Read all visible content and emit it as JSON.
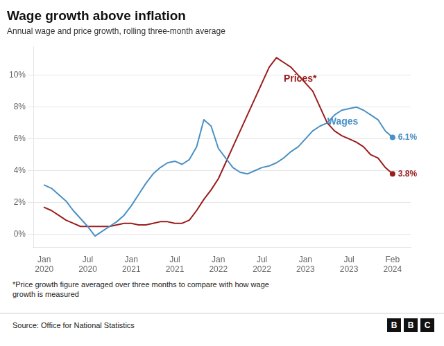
{
  "chart_data": {
    "type": "line",
    "title": "Wage growth above inflation",
    "subtitle": "Annual wage and price growth, rolling three-month average",
    "footnote": "*Price growth figure averaged over three months to compare with how wage\ngrowth is measured",
    "source": "Source: Office for National Statistics",
    "logo": "BBC",
    "x": [
      0,
      1,
      2,
      3,
      4,
      5,
      6,
      7,
      8,
      9,
      10,
      11,
      12,
      13,
      14,
      15,
      16,
      17,
      18,
      19,
      20,
      21,
      22,
      23,
      24,
      25,
      26,
      27,
      28,
      29,
      30,
      31,
      32,
      33,
      34,
      35,
      36,
      37,
      38,
      39,
      40,
      41,
      42,
      43,
      44,
      45,
      46,
      47,
      48
    ],
    "series": [
      {
        "name": "Wages",
        "color": "#4a90c4",
        "end_label": "6.1%",
        "values": [
          3.1,
          2.9,
          2.5,
          2.1,
          1.5,
          1.0,
          0.5,
          -0.1,
          0.2,
          0.5,
          0.8,
          1.2,
          1.8,
          2.5,
          3.2,
          3.8,
          4.2,
          4.5,
          4.6,
          4.4,
          4.7,
          5.5,
          7.2,
          6.8,
          5.4,
          4.8,
          4.2,
          3.9,
          3.8,
          4.0,
          4.2,
          4.3,
          4.5,
          4.8,
          5.2,
          5.5,
          6.0,
          6.5,
          6.8,
          7.0,
          7.5,
          7.8,
          7.9,
          8.0,
          7.8,
          7.5,
          7.2,
          6.5,
          6.1
        ]
      },
      {
        "name": "Prices*",
        "color": "#9b1c1c",
        "end_label": "3.8%",
        "values": [
          1.7,
          1.5,
          1.2,
          0.9,
          0.7,
          0.5,
          0.5,
          0.5,
          0.5,
          0.5,
          0.6,
          0.7,
          0.7,
          0.6,
          0.6,
          0.7,
          0.8,
          0.8,
          0.7,
          0.7,
          0.9,
          1.5,
          2.2,
          2.8,
          3.5,
          4.5,
          5.5,
          6.5,
          7.5,
          8.5,
          9.5,
          10.5,
          11.1,
          10.8,
          10.5,
          10.0,
          9.5,
          9.0,
          8.0,
          7.0,
          6.5,
          6.2,
          6.0,
          5.8,
          5.5,
          5.0,
          4.8,
          4.2,
          3.8
        ]
      }
    ],
    "annotations": [
      {
        "text": "Prices*",
        "x": 33,
        "y": 9.6,
        "color": "#9b1c1c"
      },
      {
        "text": "Wages",
        "x": 39,
        "y": 6.9,
        "color": "#4a90c4"
      }
    ],
    "xlim": [
      -1.5,
      50.5
    ],
    "xticks": [
      {
        "value": 0,
        "label": "Jan\n2020"
      },
      {
        "value": 6,
        "label": "Jul\n2020"
      },
      {
        "value": 12,
        "label": "Jan\n2021"
      },
      {
        "value": 18,
        "label": "Jul\n2021"
      },
      {
        "value": 24,
        "label": "Jan\n2022"
      },
      {
        "value": 30,
        "label": "Jul\n2022"
      },
      {
        "value": 36,
        "label": "Jan\n2023"
      },
      {
        "value": 42,
        "label": "Jul\n2023"
      },
      {
        "value": 48,
        "label": "Feb\n2024"
      }
    ],
    "ylim": [
      -0.8,
      11.8
    ],
    "yticks": [
      {
        "value": 0,
        "label": "0%"
      },
      {
        "value": 2,
        "label": "2%"
      },
      {
        "value": 4,
        "label": "4%"
      },
      {
        "value": 6,
        "label": "6%"
      },
      {
        "value": 8,
        "label": "8%"
      },
      {
        "value": 10,
        "label": "10%"
      }
    ],
    "grid": true
  }
}
